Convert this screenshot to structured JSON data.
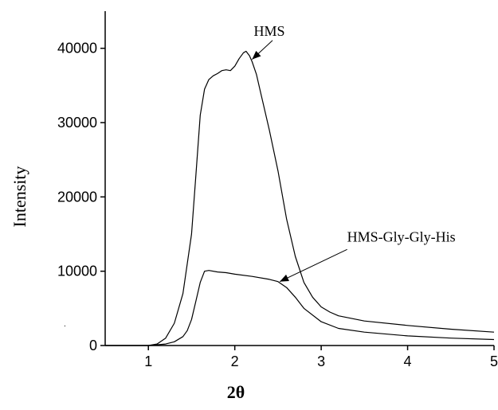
{
  "chart_data": {
    "type": "line",
    "title": "",
    "xlabel": "2θ",
    "ylabel": "Intensity",
    "xlim": [
      0.5,
      5
    ],
    "ylim": [
      0,
      45000
    ],
    "xticks": [
      1,
      2,
      3,
      4,
      5
    ],
    "yticks": [
      0,
      10000,
      20000,
      30000,
      40000
    ],
    "grid": false,
    "legend": "none",
    "series": [
      {
        "name": "HMS",
        "color": "#000000",
        "points": [
          [
            0.5,
            0
          ],
          [
            0.9,
            0
          ],
          [
            1.0,
            0
          ],
          [
            1.1,
            200
          ],
          [
            1.2,
            1000
          ],
          [
            1.3,
            3000
          ],
          [
            1.4,
            7000
          ],
          [
            1.5,
            15000
          ],
          [
            1.55,
            23000
          ],
          [
            1.6,
            31000
          ],
          [
            1.65,
            34500
          ],
          [
            1.7,
            35800
          ],
          [
            1.75,
            36300
          ],
          [
            1.8,
            36600
          ],
          [
            1.85,
            37000
          ],
          [
            1.9,
            37100
          ],
          [
            1.95,
            37000
          ],
          [
            2.0,
            37600
          ],
          [
            2.05,
            38600
          ],
          [
            2.1,
            39400
          ],
          [
            2.13,
            39600
          ],
          [
            2.17,
            39000
          ],
          [
            2.2,
            38200
          ],
          [
            2.25,
            36500
          ],
          [
            2.3,
            34000
          ],
          [
            2.4,
            29000
          ],
          [
            2.5,
            23500
          ],
          [
            2.6,
            17000
          ],
          [
            2.7,
            12000
          ],
          [
            2.8,
            8500
          ],
          [
            2.9,
            6500
          ],
          [
            3.0,
            5200
          ],
          [
            3.1,
            4500
          ],
          [
            3.2,
            4000
          ],
          [
            3.5,
            3300
          ],
          [
            4.0,
            2700
          ],
          [
            4.5,
            2200
          ],
          [
            5.0,
            1800
          ]
        ]
      },
      {
        "name": "HMS-Gly-Gly-His",
        "color": "#000000",
        "points": [
          [
            0.5,
            0
          ],
          [
            1.0,
            0
          ],
          [
            1.2,
            200
          ],
          [
            1.3,
            500
          ],
          [
            1.4,
            1200
          ],
          [
            1.45,
            2000
          ],
          [
            1.5,
            3500
          ],
          [
            1.55,
            6000
          ],
          [
            1.6,
            8500
          ],
          [
            1.65,
            10000
          ],
          [
            1.7,
            10100
          ],
          [
            1.8,
            9900
          ],
          [
            1.9,
            9800
          ],
          [
            2.0,
            9600
          ],
          [
            2.2,
            9300
          ],
          [
            2.4,
            8900
          ],
          [
            2.5,
            8600
          ],
          [
            2.6,
            7800
          ],
          [
            2.7,
            6500
          ],
          [
            2.8,
            5000
          ],
          [
            3.0,
            3200
          ],
          [
            3.2,
            2300
          ],
          [
            3.5,
            1800
          ],
          [
            4.0,
            1300
          ],
          [
            4.5,
            1000
          ],
          [
            5.0,
            800
          ]
        ]
      }
    ],
    "annotations": [
      {
        "text": "HMS",
        "target": [
          2.2,
          38500
        ],
        "text_at": [
          2.4,
          41700
        ]
      },
      {
        "text": "HMS-Gly-Gly-His",
        "target": [
          2.52,
          8600
        ],
        "text_at": [
          3.3,
          14000
        ]
      }
    ]
  }
}
